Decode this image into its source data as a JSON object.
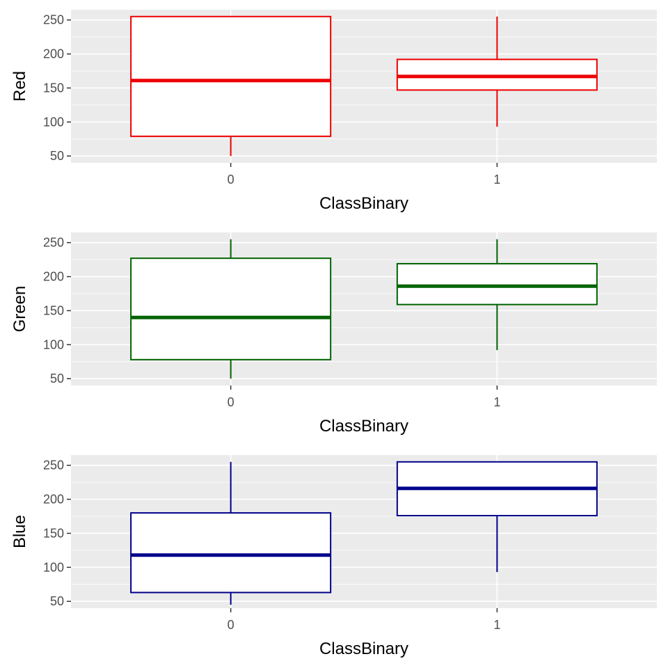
{
  "chart_data": [
    {
      "type": "box",
      "xlabel": "ClassBinary",
      "ylabel": "Red",
      "categories": [
        "0",
        "1"
      ],
      "y_ticks": [
        50,
        100,
        150,
        200,
        250
      ],
      "ylim": [
        40,
        265
      ],
      "color": "#ee0000",
      "boxes": [
        {
          "category": "0",
          "min": 50,
          "q1": 79,
          "median": 161,
          "q3": 255,
          "max": 255
        },
        {
          "category": "1",
          "min": 93,
          "q1": 147,
          "median": 167,
          "q3": 192,
          "max": 255
        }
      ]
    },
    {
      "type": "box",
      "xlabel": "ClassBinary",
      "ylabel": "Green",
      "categories": [
        "0",
        "1"
      ],
      "y_ticks": [
        50,
        100,
        150,
        200,
        250
      ],
      "ylim": [
        40,
        265
      ],
      "color": "#006400",
      "boxes": [
        {
          "category": "0",
          "min": 50,
          "q1": 78,
          "median": 140,
          "q3": 227,
          "max": 255
        },
        {
          "category": "1",
          "min": 92,
          "q1": 159,
          "median": 186,
          "q3": 219,
          "max": 255
        }
      ]
    },
    {
      "type": "box",
      "xlabel": "ClassBinary",
      "ylabel": "Blue",
      "categories": [
        "0",
        "1"
      ],
      "y_ticks": [
        50,
        100,
        150,
        200,
        250
      ],
      "ylim": [
        40,
        265
      ],
      "color": "#00008b",
      "boxes": [
        {
          "category": "0",
          "min": 45,
          "q1": 63,
          "median": 118,
          "q3": 180,
          "max": 255
        },
        {
          "category": "1",
          "min": 93,
          "q1": 176,
          "median": 216,
          "q3": 255,
          "max": 255
        }
      ]
    }
  ]
}
